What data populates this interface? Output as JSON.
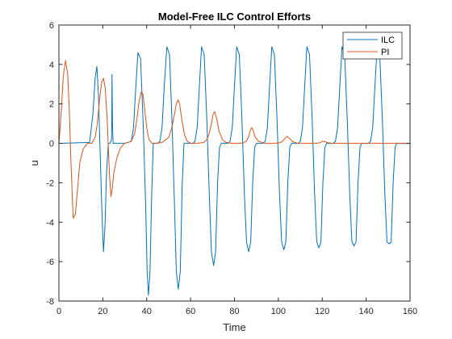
{
  "chart_data": {
    "type": "line",
    "title": "Model-Free ILC Control Efforts",
    "xlabel": "Time",
    "ylabel": "u",
    "xlim": [
      0,
      160
    ],
    "ylim": [
      -8,
      6
    ],
    "xticks": [
      0,
      20,
      40,
      60,
      80,
      100,
      120,
      140,
      160
    ],
    "yticks": [
      -8,
      -6,
      -4,
      -2,
      0,
      2,
      4,
      6
    ],
    "grid": false,
    "legend_position": "top-right",
    "series": [
      {
        "name": "ILC",
        "color": "#0072BD",
        "x": [
          0,
          14,
          15.5,
          16.5,
          17.3,
          18,
          18.8,
          19.6,
          20.3,
          21,
          21.7,
          22.5,
          23.3,
          24.0,
          24.1,
          24.2,
          24.4,
          24.7,
          25,
          30,
          33,
          34,
          35,
          36,
          37.2,
          38.4,
          39.5,
          40.2,
          40.8,
          41.5,
          42.3,
          43,
          45,
          46,
          47,
          48,
          49.2,
          50.4,
          51.5,
          52.5,
          53.5,
          54.4,
          55.3,
          56.2,
          57,
          61,
          62,
          63,
          64,
          65,
          66.2,
          67.4,
          68.5,
          69.5,
          70.5,
          71.4,
          72.3,
          73.2,
          74,
          77,
          78,
          79,
          80,
          81,
          82.2,
          83.4,
          84.5,
          85.5,
          86.5,
          87.4,
          88.3,
          89.2,
          90,
          93,
          94,
          95,
          96,
          97,
          98.2,
          99.4,
          100.5,
          101.5,
          102.5,
          103.4,
          104.3,
          105.2,
          106,
          109,
          110,
          111,
          112,
          113,
          114.2,
          115.4,
          116.5,
          117.5,
          118.5,
          119.4,
          120.3,
          121.2,
          122,
          125,
          126,
          127,
          128,
          129,
          130.2,
          131.4,
          132.5,
          133.5,
          134.5,
          135.4,
          136.3,
          137.2,
          138,
          141,
          142,
          143,
          144,
          145,
          146.2,
          147.4,
          148.5,
          149.5,
          150.5,
          151.4,
          152.3,
          153.2,
          154,
          160
        ],
        "y": [
          0,
          0.05,
          1.5,
          3.3,
          3.9,
          2.5,
          -0.5,
          -3.5,
          -5.5,
          -4.2,
          -1.5,
          0,
          0,
          0.2,
          1.5,
          3.5,
          1,
          0,
          0,
          0,
          0.1,
          0.8,
          2.8,
          4.6,
          4.3,
          1,
          -3,
          -6.5,
          -7.7,
          -6.5,
          -2.5,
          0,
          0,
          0.1,
          0.8,
          2.9,
          4.9,
          4.5,
          1.2,
          -2.5,
          -6.5,
          -7.4,
          -6.5,
          -2,
          0,
          0,
          0.1,
          0.8,
          2.9,
          4.9,
          4.5,
          1.2,
          -2.5,
          -5.5,
          -6.2,
          -5.5,
          -2,
          -0.2,
          0,
          0,
          0.1,
          0.8,
          2.9,
          4.9,
          4.5,
          1.2,
          -2.5,
          -5,
          -5.5,
          -5,
          -2,
          -0.2,
          0,
          0,
          0.1,
          0.8,
          2.9,
          4.9,
          4.5,
          1.2,
          -2.5,
          -5,
          -5.4,
          -5,
          -2,
          -0.2,
          0,
          0,
          0.1,
          0.8,
          2.9,
          4.9,
          4.5,
          1.2,
          -2.5,
          -5,
          -5.3,
          -5,
          -2,
          -0.2,
          0,
          0,
          0.1,
          0.8,
          2.9,
          4.9,
          4.5,
          1.2,
          -2.5,
          -5,
          -5.2,
          -5,
          -2,
          -0.2,
          0,
          0,
          0.1,
          0.8,
          2.9,
          4.9,
          4.5,
          1.2,
          -2.5,
          -5,
          -5.1,
          -5,
          -2,
          -0.2,
          0,
          0
        ]
      },
      {
        "name": "PI",
        "color": "#D95319",
        "x": [
          0,
          1,
          2,
          3,
          4,
          4.7,
          5.5,
          6.5,
          7.5,
          8.5,
          9.5,
          11,
          13,
          15,
          16.5,
          17.5,
          18.5,
          19.5,
          20.3,
          21.1,
          22,
          23,
          23.7,
          24.3,
          25,
          26.5,
          28,
          30,
          33,
          34.5,
          35.5,
          36.5,
          37.5,
          38.3,
          39,
          40,
          41,
          42.5,
          44,
          47,
          50,
          51.5,
          52.5,
          53.5,
          54.3,
          55,
          56,
          57.2,
          58.5,
          60,
          63,
          66,
          67.5,
          68.5,
          69.5,
          70.3,
          71,
          72,
          73,
          74.5,
          76,
          79,
          82,
          84,
          85.5,
          86.5,
          87.2,
          87.8,
          88.5,
          89.5,
          91,
          94,
          97,
          100,
          101.5,
          102.5,
          103.3,
          104,
          105,
          106.5,
          109,
          112,
          116,
          118.5,
          119.5,
          120.2,
          121,
          122.5,
          125,
          132,
          140,
          145,
          160
        ],
        "y": [
          0,
          1.5,
          3.4,
          4.2,
          3.5,
          1.8,
          -1,
          -3.8,
          -3.6,
          -2.3,
          -1,
          -0.3,
          0,
          0,
          0.3,
          1,
          2.2,
          3.1,
          3.3,
          2.8,
          1.2,
          -1.5,
          -2.7,
          -2.3,
          -1.5,
          -0.7,
          -0.25,
          0,
          0.1,
          0.5,
          1.2,
          2.1,
          2.6,
          2.5,
          1.8,
          0.8,
          0.2,
          0,
          0,
          0.05,
          0.3,
          0.8,
          1.4,
          2,
          2.2,
          2,
          1.2,
          0.45,
          0.1,
          0,
          0,
          0.05,
          0.2,
          0.5,
          1,
          1.5,
          1.6,
          1.2,
          0.6,
          0.2,
          0.05,
          0,
          0,
          0.02,
          0.12,
          0.35,
          0.65,
          0.8,
          0.65,
          0.3,
          0.1,
          0,
          0,
          0.02,
          0.07,
          0.17,
          0.3,
          0.35,
          0.25,
          0.08,
          0,
          0,
          0,
          0.02,
          0.06,
          0.11,
          0.09,
          0.03,
          0,
          0,
          0,
          0,
          0
        ]
      }
    ]
  }
}
